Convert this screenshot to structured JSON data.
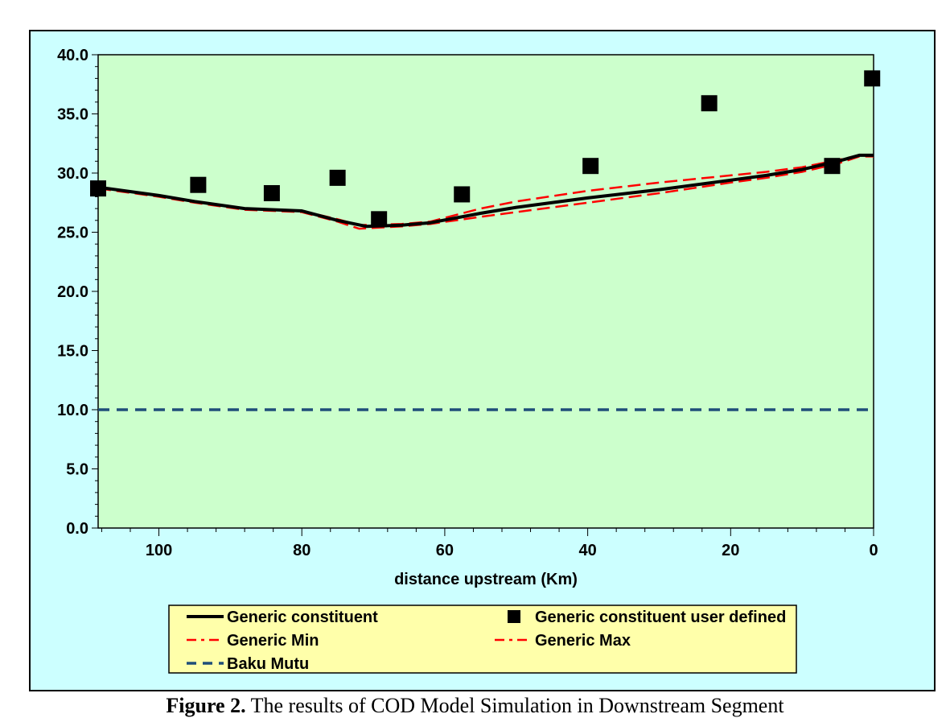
{
  "chart_data": {
    "type": "line",
    "title": "",
    "xlabel": "distance upstream (Km)",
    "ylabel": "",
    "xlim": [
      108.5,
      0
    ],
    "ylim": [
      0,
      40
    ],
    "x_ticks": [
      100,
      80,
      60,
      40,
      20,
      0
    ],
    "y_ticks": [
      0,
      5,
      10,
      15,
      20,
      25,
      30,
      35,
      40
    ],
    "y_tick_labels": [
      "0.0",
      "5.0",
      "10.0",
      "15.0",
      "20.0",
      "25.0",
      "30.0",
      "35.0",
      "40.0"
    ],
    "grid": false,
    "legend_position": "bottom",
    "series": [
      {
        "name": "Generic constituent",
        "style": "solid",
        "color": "#000000",
        "x": [
          108.5,
          100,
          95,
          88,
          80,
          75,
          71,
          66,
          62,
          55,
          50,
          40,
          30,
          20,
          15,
          10,
          5,
          2,
          0
        ],
        "y": [
          28.8,
          28.1,
          27.6,
          27.0,
          26.8,
          26.0,
          25.5,
          25.6,
          25.8,
          26.6,
          27.1,
          27.9,
          28.6,
          29.4,
          29.8,
          30.3,
          31.0,
          31.5,
          31.5
        ]
      },
      {
        "name": "Generic constituent user defined",
        "style": "marker",
        "color": "#000000",
        "x": [
          108.5,
          94.5,
          84.2,
          75,
          69.2,
          57.6,
          39.6,
          23,
          5.8,
          0.2
        ],
        "y": [
          28.7,
          29.0,
          28.3,
          29.6,
          26.1,
          28.2,
          30.6,
          35.9,
          30.6,
          38.0
        ]
      },
      {
        "name": "Generic Min",
        "style": "dashed",
        "color": "#ff0000",
        "x": [
          108.5,
          100,
          95,
          88,
          80,
          75,
          72,
          66,
          62,
          55,
          50,
          40,
          30,
          20,
          15,
          10,
          5,
          2,
          0
        ],
        "y": [
          28.7,
          28.0,
          27.5,
          26.9,
          26.7,
          25.9,
          25.3,
          25.5,
          25.7,
          26.3,
          26.7,
          27.5,
          28.3,
          29.2,
          29.6,
          30.1,
          30.8,
          31.4,
          31.4
        ]
      },
      {
        "name": "Generic Max",
        "style": "dashed",
        "color": "#ff0000",
        "x": [
          108.5,
          100,
          95,
          88,
          80,
          75,
          72,
          66,
          62,
          55,
          50,
          40,
          30,
          20,
          15,
          10,
          5,
          2,
          0
        ],
        "y": [
          28.8,
          28.1,
          27.6,
          27.0,
          26.8,
          26.1,
          25.6,
          25.7,
          25.9,
          27.0,
          27.6,
          28.5,
          29.2,
          29.8,
          30.1,
          30.5,
          31.1,
          31.5,
          31.5
        ]
      },
      {
        "name": "Baku Mutu",
        "style": "dashed",
        "color": "#1f4e79",
        "x": [
          108.5,
          0
        ],
        "y": [
          10.0,
          10.0
        ]
      }
    ]
  },
  "caption": {
    "label": "Figure 2.",
    "text": " The results of COD Model Simulation in Downstream Segment"
  }
}
